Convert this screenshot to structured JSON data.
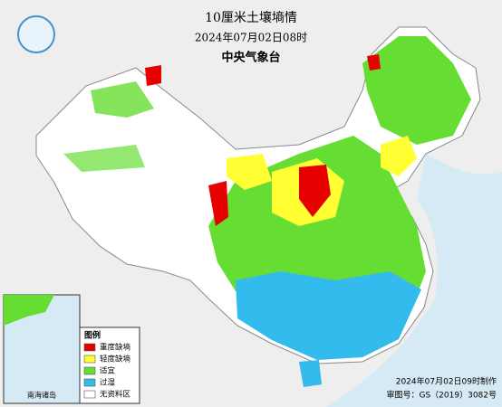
{
  "header": {
    "title": "10厘米土壤墒情",
    "time": "2024年07月02日08时",
    "issuer": "中央气象台"
  },
  "legend": {
    "title": "图例",
    "items": [
      {
        "label": "重度缺墒",
        "color": "#e60000"
      },
      {
        "label": "轻度缺墒",
        "color": "#ffff33"
      },
      {
        "label": "适宜",
        "color": "#66dd33"
      },
      {
        "label": "过湿",
        "color": "#33bbee"
      },
      {
        "label": "无资料区",
        "color": "#ffffff"
      }
    ]
  },
  "inset": {
    "label": "南海诸岛"
  },
  "footer": {
    "made": "2024年07月02日09时制作",
    "approval": "审图号：GS（2019）3082号"
  }
}
